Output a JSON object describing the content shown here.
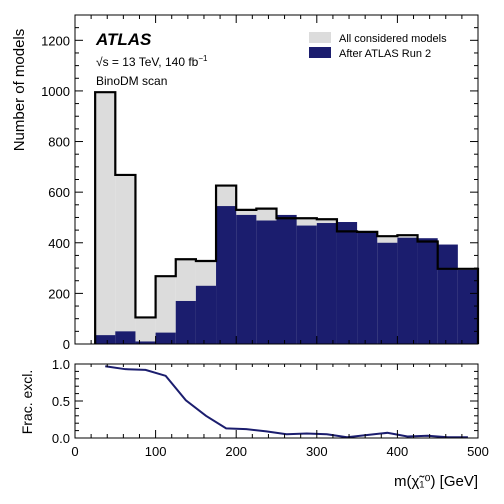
{
  "colors": {
    "all_models": "#dcdcdc",
    "after_run2": "#1b1d6e",
    "outline": "#000000",
    "ratio_line": "#1b1d6e"
  },
  "annotations": {
    "experiment": "ATLAS",
    "energy": "√s = 13 TeV, 140 fb",
    "lumi_exponent": "−1",
    "scan": "BinoDM scan"
  },
  "chart_data": [
    {
      "type": "bar",
      "panel": "top",
      "ylabel": "Number of models",
      "xlim": [
        0,
        500
      ],
      "ylim": [
        0,
        1300
      ],
      "yticks": [
        0,
        200,
        400,
        600,
        800,
        1000,
        1200
      ],
      "legend": {
        "placement": "top-right",
        "entries": [
          "All considered models",
          "After ATLAS Run 2"
        ]
      },
      "bin_edges": [
        25,
        50,
        75,
        100,
        125,
        150,
        175,
        200,
        225,
        250,
        275,
        300,
        325,
        350,
        375,
        400,
        425,
        450,
        475,
        500
      ],
      "series": [
        {
          "name": "All considered models",
          "values": [
            995,
            668,
            105,
            268,
            335,
            328,
            626,
            530,
            535,
            497,
            497,
            493,
            445,
            443,
            426,
            430,
            405,
            297,
            297
          ]
        },
        {
          "name": "After ATLAS Run 2",
          "values": [
            35,
            50,
            10,
            45,
            170,
            230,
            545,
            510,
            488,
            510,
            468,
            478,
            482,
            440,
            400,
            420,
            418,
            393,
            293
          ]
        }
      ]
    },
    {
      "type": "line",
      "panel": "bottom",
      "ylabel": "Frac. excl.",
      "xlabel": "m(χ̃₁⁰) [GeV]",
      "xlim": [
        0,
        500
      ],
      "ylim": [
        0,
        1.0
      ],
      "xticks": [
        0,
        100,
        200,
        300,
        400,
        500
      ],
      "yticks": [
        0.0,
        0.5,
        1.0
      ],
      "x": [
        37.5,
        62.5,
        87.5,
        112.5,
        137.5,
        162.5,
        187.5,
        212.5,
        237.5,
        262.5,
        287.5,
        312.5,
        337.5,
        362.5,
        387.5,
        412.5,
        437.5,
        462.5,
        487.5
      ],
      "values": [
        0.97,
        0.93,
        0.92,
        0.84,
        0.51,
        0.3,
        0.13,
        0.12,
        0.09,
        0.05,
        0.06,
        0.05,
        0.01,
        0.04,
        0.07,
        0.02,
        0.03,
        0.01,
        0.01
      ]
    }
  ]
}
